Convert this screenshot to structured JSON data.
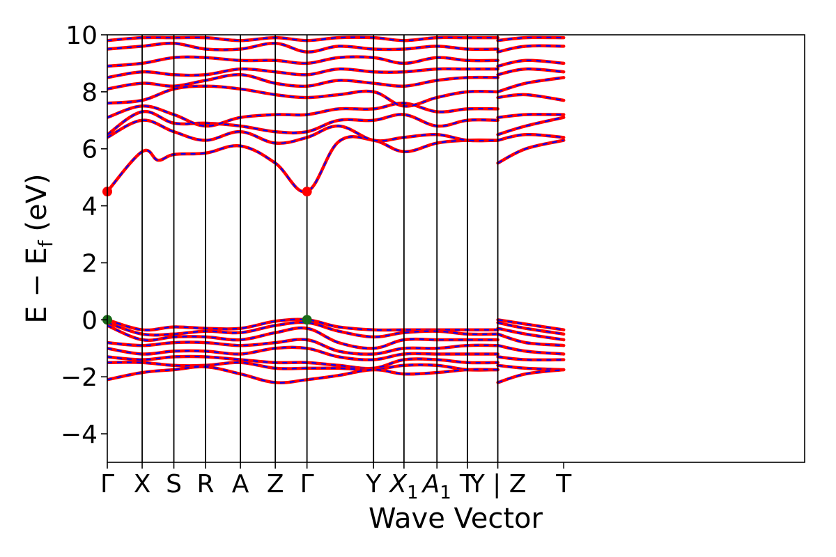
{
  "chart_data": {
    "type": "line",
    "title": "",
    "xlabel": "Wave Vector",
    "ylabel": "E − E_f (eV)",
    "ylabel_main": "E − E",
    "ylabel_sub": "f",
    "ylabel_units": " (eV)",
    "ylim": [
      -5,
      10
    ],
    "yticks": [
      -4,
      -2,
      0,
      2,
      4,
      6,
      8,
      10
    ],
    "grid": false,
    "legend": "none",
    "x_range": [
      0,
      11
    ],
    "kpoints": [
      {
        "label": "Γ",
        "x": 0.0
      },
      {
        "label": "X",
        "x": 0.55
      },
      {
        "label": "S",
        "x": 1.05
      },
      {
        "label": "R",
        "x": 1.55
      },
      {
        "label": "A",
        "x": 2.1
      },
      {
        "label": "Z",
        "x": 2.65
      },
      {
        "label": "Γ",
        "x": 3.15
      },
      {
        "label": "Y",
        "x": 4.2
      },
      {
        "label": "X",
        "sub": "1",
        "italic": true,
        "x": 4.68
      },
      {
        "label": "A",
        "sub": "1",
        "italic": true,
        "x": 5.2
      },
      {
        "label": "T",
        "x": 5.68
      },
      {
        "label": "Y | Z",
        "x": 6.16
      },
      {
        "label": "T",
        "x": 7.2
      }
    ],
    "segment_boundaries": [
      0.55,
      1.05,
      1.55,
      2.1,
      2.65,
      3.15,
      4.2,
      4.68,
      5.2,
      5.68,
      6.16
    ],
    "path_break": 6.16,
    "colors": {
      "spin_up": "#ff0000",
      "spin_down": "#0000ff",
      "vbm_marker": "#1a6b1a",
      "cbm_marker": "#ff0000"
    },
    "series": [
      {
        "band": "c1",
        "x": [
          0.0,
          0.55,
          0.8,
          1.05,
          1.55,
          2.1,
          2.65,
          3.15,
          3.65,
          4.2,
          4.68,
          5.2,
          5.68,
          6.16
        ],
        "y": [
          4.5,
          5.9,
          5.6,
          5.8,
          5.85,
          6.1,
          5.5,
          4.5,
          6.25,
          6.3,
          5.9,
          6.2,
          6.3,
          6.3
        ]
      },
      {
        "band": "c1b",
        "x": [
          6.16,
          6.6,
          7.2
        ],
        "y": [
          5.5,
          6.0,
          6.3
        ]
      },
      {
        "band": "c2",
        "x": [
          0.0,
          0.55,
          1.05,
          1.55,
          2.1,
          2.65,
          3.15,
          3.65,
          4.2,
          4.68,
          5.2,
          5.68,
          6.16
        ],
        "y": [
          6.4,
          7.0,
          6.6,
          6.3,
          6.6,
          6.2,
          6.4,
          6.8,
          6.3,
          6.4,
          6.5,
          6.3,
          6.3
        ]
      },
      {
        "band": "c2b",
        "x": [
          6.16,
          6.6,
          7.2
        ],
        "y": [
          6.3,
          6.5,
          6.4
        ]
      },
      {
        "band": "c3",
        "x": [
          0.0,
          0.55,
          1.05,
          1.55,
          2.1,
          2.65,
          3.15,
          3.65,
          4.2,
          4.68,
          5.2,
          5.68,
          6.16
        ],
        "y": [
          6.5,
          7.3,
          6.9,
          6.9,
          6.8,
          6.6,
          6.6,
          7.0,
          7.0,
          7.2,
          6.8,
          7.0,
          7.0
        ]
      },
      {
        "band": "c3b",
        "x": [
          6.16,
          6.6,
          7.2
        ],
        "y": [
          6.5,
          6.8,
          7.1
        ]
      },
      {
        "band": "c4",
        "x": [
          0.0,
          0.55,
          1.05,
          1.55,
          2.1,
          2.65,
          3.15,
          3.65,
          4.2,
          4.68,
          5.2,
          5.68,
          6.16
        ],
        "y": [
          7.1,
          7.5,
          7.2,
          6.8,
          7.1,
          7.2,
          7.2,
          7.4,
          7.4,
          7.6,
          7.3,
          7.4,
          7.4
        ]
      },
      {
        "band": "c4b",
        "x": [
          6.16,
          6.6,
          7.2
        ],
        "y": [
          7.1,
          7.2,
          7.2
        ]
      },
      {
        "band": "c5",
        "x": [
          0.0,
          0.55,
          1.05,
          1.55,
          2.1,
          2.65,
          3.15,
          3.65,
          4.2,
          4.68,
          5.2,
          5.68,
          6.16
        ],
        "y": [
          7.6,
          7.7,
          8.1,
          8.2,
          8.1,
          7.9,
          7.8,
          7.9,
          8.0,
          7.5,
          7.8,
          8.0,
          8.0
        ]
      },
      {
        "band": "c5b",
        "x": [
          6.16,
          6.6,
          7.2
        ],
        "y": [
          7.8,
          7.9,
          7.7
        ]
      },
      {
        "band": "c6",
        "x": [
          0.0,
          0.55,
          1.05,
          1.55,
          2.1,
          2.65,
          3.15,
          3.65,
          4.2,
          4.68,
          5.2,
          5.68,
          6.16
        ],
        "y": [
          8.1,
          8.3,
          8.2,
          8.4,
          8.6,
          8.3,
          8.2,
          8.4,
          8.3,
          8.2,
          8.4,
          8.5,
          8.5
        ]
      },
      {
        "band": "c6b",
        "x": [
          6.16,
          6.6,
          7.2
        ],
        "y": [
          8.0,
          8.3,
          8.5
        ]
      },
      {
        "band": "c7",
        "x": [
          0.0,
          0.55,
          1.05,
          1.55,
          2.1,
          2.65,
          3.15,
          3.65,
          4.2,
          4.68,
          5.2,
          5.68,
          6.16
        ],
        "y": [
          8.5,
          8.7,
          8.6,
          8.6,
          8.8,
          8.7,
          8.6,
          8.8,
          8.7,
          8.7,
          8.8,
          8.8,
          8.8
        ]
      },
      {
        "band": "c7b",
        "x": [
          6.16,
          6.6,
          7.2
        ],
        "y": [
          8.6,
          8.8,
          8.7
        ]
      },
      {
        "band": "c8",
        "x": [
          0.0,
          0.55,
          1.05,
          1.55,
          2.1,
          2.65,
          3.15,
          3.65,
          4.2,
          4.68,
          5.2,
          5.68,
          6.16
        ],
        "y": [
          8.9,
          9.0,
          9.2,
          9.2,
          9.1,
          9.1,
          9.0,
          9.2,
          9.2,
          9.0,
          9.2,
          9.1,
          9.1
        ]
      },
      {
        "band": "c8b",
        "x": [
          6.16,
          6.6,
          7.2
        ],
        "y": [
          8.9,
          9.1,
          9.0
        ]
      },
      {
        "band": "c9",
        "x": [
          0.0,
          0.55,
          1.05,
          1.55,
          2.1,
          2.65,
          3.15,
          3.65,
          4.2,
          4.68,
          5.2,
          5.68,
          6.16
        ],
        "y": [
          9.5,
          9.6,
          9.7,
          9.5,
          9.5,
          9.7,
          9.4,
          9.6,
          9.5,
          9.5,
          9.6,
          9.5,
          9.5
        ]
      },
      {
        "band": "c9b",
        "x": [
          6.16,
          6.6,
          7.2
        ],
        "y": [
          9.4,
          9.6,
          9.6
        ]
      },
      {
        "band": "c10",
        "x": [
          0.0,
          0.55,
          1.05,
          1.55,
          2.1,
          2.65,
          3.15,
          3.65,
          4.2,
          4.68,
          5.2,
          5.68,
          6.16
        ],
        "y": [
          9.8,
          9.9,
          9.9,
          9.9,
          9.8,
          9.9,
          9.8,
          9.9,
          9.9,
          9.8,
          9.9,
          9.9,
          9.9
        ]
      },
      {
        "band": "c10b",
        "x": [
          6.16,
          6.6,
          7.2
        ],
        "y": [
          9.8,
          9.9,
          9.9
        ]
      },
      {
        "band": "v1",
        "x": [
          0.0,
          0.55,
          1.05,
          1.55,
          2.1,
          2.65,
          3.15,
          3.65,
          4.2,
          4.68,
          5.2,
          5.68,
          6.16
        ],
        "y": [
          0.0,
          -0.35,
          -0.25,
          -0.3,
          -0.3,
          -0.05,
          0.0,
          -0.25,
          -0.35,
          -0.35,
          -0.35,
          -0.35,
          -0.35
        ]
      },
      {
        "band": "v1b",
        "x": [
          6.16,
          6.6,
          7.2
        ],
        "y": [
          0.0,
          -0.15,
          -0.35
        ]
      },
      {
        "band": "v2",
        "x": [
          0.0,
          0.55,
          1.05,
          1.55,
          2.1,
          2.65,
          3.15,
          3.65,
          4.2,
          4.68,
          5.2,
          5.68,
          6.16
        ],
        "y": [
          -0.1,
          -0.5,
          -0.5,
          -0.4,
          -0.45,
          -0.2,
          -0.1,
          -0.4,
          -0.6,
          -0.45,
          -0.4,
          -0.5,
          -0.5
        ]
      },
      {
        "band": "v2b",
        "x": [
          6.16,
          6.6,
          7.2
        ],
        "y": [
          -0.1,
          -0.3,
          -0.5
        ]
      },
      {
        "band": "v3",
        "x": [
          0.0,
          0.55,
          1.05,
          1.55,
          2.1,
          2.65,
          3.15,
          3.65,
          4.2,
          4.68,
          5.2,
          5.68,
          6.16
        ],
        "y": [
          -0.2,
          -0.7,
          -0.6,
          -0.6,
          -0.7,
          -0.45,
          -0.3,
          -0.8,
          -1.0,
          -0.7,
          -0.7,
          -0.7,
          -0.7
        ]
      },
      {
        "band": "v3b",
        "x": [
          6.16,
          6.6,
          7.2
        ],
        "y": [
          -0.3,
          -0.5,
          -0.7
        ]
      },
      {
        "band": "v4",
        "x": [
          0.0,
          0.55,
          1.05,
          1.55,
          2.1,
          2.65,
          3.15,
          3.65,
          4.2,
          4.68,
          5.2,
          5.68,
          6.16
        ],
        "y": [
          -0.8,
          -0.9,
          -0.8,
          -0.8,
          -0.9,
          -0.8,
          -0.7,
          -1.1,
          -1.2,
          -1.0,
          -1.0,
          -0.9,
          -0.9
        ]
      },
      {
        "band": "v4b",
        "x": [
          6.16,
          6.6,
          7.2
        ],
        "y": [
          -0.5,
          -0.8,
          -0.9
        ]
      },
      {
        "band": "v5",
        "x": [
          0.0,
          0.55,
          1.05,
          1.55,
          2.1,
          2.65,
          3.15,
          3.65,
          4.2,
          4.68,
          5.2,
          5.68,
          6.16
        ],
        "y": [
          -1.0,
          -1.2,
          -1.1,
          -1.1,
          -1.2,
          -1.0,
          -1.0,
          -1.3,
          -1.4,
          -1.2,
          -1.2,
          -1.2,
          -1.2
        ]
      },
      {
        "band": "v5b",
        "x": [
          6.16,
          6.6,
          7.2
        ],
        "y": [
          -0.9,
          -1.1,
          -1.2
        ]
      },
      {
        "band": "v6",
        "x": [
          0.0,
          0.55,
          1.05,
          1.55,
          2.1,
          2.65,
          3.15,
          3.65,
          4.2,
          4.68,
          5.2,
          5.68,
          6.16
        ],
        "y": [
          -1.3,
          -1.4,
          -1.3,
          -1.3,
          -1.4,
          -1.5,
          -1.5,
          -1.6,
          -1.7,
          -1.4,
          -1.4,
          -1.5,
          -1.5
        ]
      },
      {
        "band": "v6b",
        "x": [
          6.16,
          6.6,
          7.2
        ],
        "y": [
          -1.3,
          -1.4,
          -1.4
        ]
      },
      {
        "band": "v7",
        "x": [
          0.0,
          0.55,
          1.05,
          1.55,
          2.1,
          2.65,
          3.15,
          3.65,
          4.2,
          4.68,
          5.2,
          5.68,
          6.16
        ],
        "y": [
          -1.5,
          -1.5,
          -1.6,
          -1.6,
          -1.5,
          -1.7,
          -1.7,
          -1.7,
          -1.75,
          -1.6,
          -1.6,
          -1.75,
          -1.75
        ]
      },
      {
        "band": "v7b",
        "x": [
          6.16,
          6.6,
          7.2
        ],
        "y": [
          -1.6,
          -1.7,
          -1.75
        ]
      },
      {
        "band": "v8",
        "x": [
          0.0,
          0.55,
          1.05,
          1.55,
          2.1,
          2.65,
          3.15,
          3.65,
          4.2,
          4.68,
          5.2,
          5.68,
          6.16
        ],
        "y": [
          -2.1,
          -1.85,
          -1.75,
          -1.65,
          -1.9,
          -2.2,
          -2.1,
          -1.95,
          -1.75,
          -1.9,
          -1.85,
          -1.75,
          -1.75
        ]
      },
      {
        "band": "v8b",
        "x": [
          6.16,
          6.6,
          7.2
        ],
        "y": [
          -2.2,
          -1.9,
          -1.75
        ]
      }
    ],
    "markers": [
      {
        "kind": "cbm",
        "x": 0.0,
        "y": 4.5
      },
      {
        "kind": "cbm",
        "x": 3.15,
        "y": 4.5
      },
      {
        "kind": "vbm",
        "x": 0.0,
        "y": 0.0
      },
      {
        "kind": "vbm",
        "x": 3.15,
        "y": 0.0
      }
    ]
  }
}
